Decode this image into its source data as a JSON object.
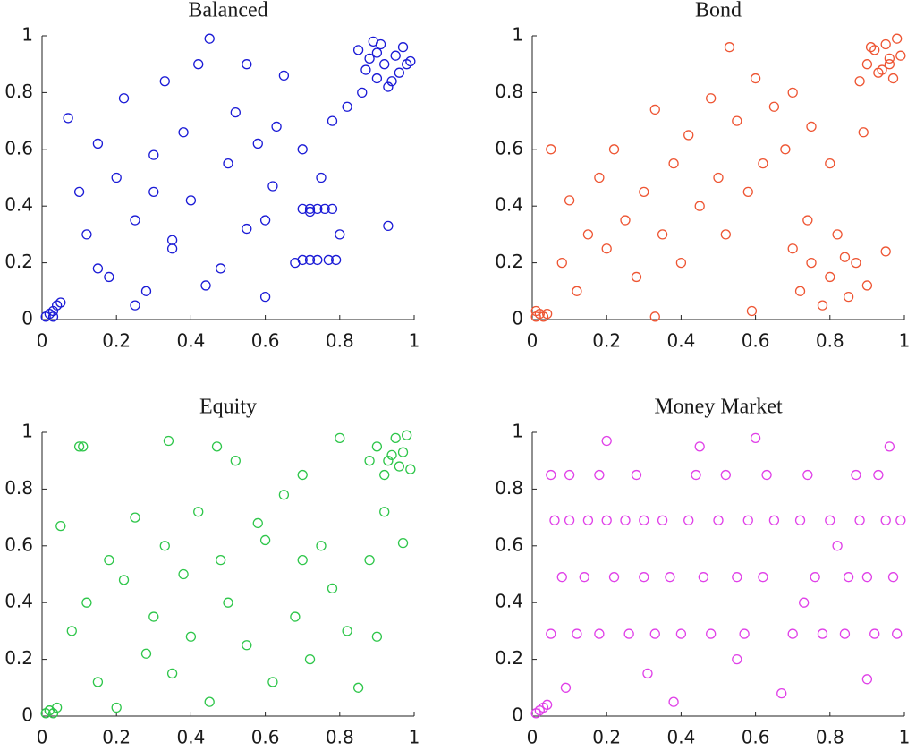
{
  "chart_data": [
    {
      "type": "scatter",
      "title": "Balanced",
      "color": "#1a1ad6",
      "xlim": [
        0,
        1
      ],
      "ylim": [
        0,
        1
      ],
      "xticks": [
        0,
        0.2,
        0.4,
        0.6,
        0.8,
        1
      ],
      "yticks": [
        0,
        0.2,
        0.4,
        0.6,
        0.8,
        1
      ],
      "x": [
        0.01,
        0.02,
        0.03,
        0.04,
        0.05,
        0.03,
        0.85,
        0.87,
        0.88,
        0.9,
        0.91,
        0.92,
        0.93,
        0.95,
        0.96,
        0.97,
        0.98,
        0.86,
        0.89,
        0.94,
        0.99,
        0.9,
        0.07,
        0.1,
        0.12,
        0.15,
        0.18,
        0.2,
        0.22,
        0.25,
        0.28,
        0.3,
        0.33,
        0.35,
        0.38,
        0.4,
        0.42,
        0.45,
        0.48,
        0.5,
        0.52,
        0.55,
        0.58,
        0.6,
        0.62,
        0.65,
        0.68,
        0.7,
        0.72,
        0.75,
        0.78,
        0.8,
        0.82,
        0.7,
        0.72,
        0.74,
        0.76,
        0.78,
        0.7,
        0.72,
        0.74,
        0.77,
        0.79,
        0.3,
        0.25,
        0.44,
        0.55,
        0.63,
        0.35,
        0.15,
        0.6,
        0.93
      ],
      "y": [
        0.01,
        0.02,
        0.03,
        0.05,
        0.06,
        0.01,
        0.95,
        0.88,
        0.92,
        0.85,
        0.97,
        0.9,
        0.82,
        0.93,
        0.87,
        0.96,
        0.9,
        0.8,
        0.98,
        0.84,
        0.91,
        0.94,
        0.71,
        0.45,
        0.3,
        0.62,
        0.15,
        0.5,
        0.78,
        0.35,
        0.1,
        0.58,
        0.84,
        0.25,
        0.66,
        0.42,
        0.9,
        0.99,
        0.18,
        0.55,
        0.73,
        0.32,
        0.62,
        0.08,
        0.47,
        0.86,
        0.2,
        0.6,
        0.38,
        0.5,
        0.7,
        0.3,
        0.75,
        0.39,
        0.39,
        0.39,
        0.39,
        0.39,
        0.21,
        0.21,
        0.21,
        0.21,
        0.21,
        0.45,
        0.05,
        0.12,
        0.9,
        0.68,
        0.28,
        0.18,
        0.35,
        0.33
      ]
    },
    {
      "type": "scatter",
      "title": "Bond",
      "color": "#ee5533",
      "xlim": [
        0,
        1
      ],
      "ylim": [
        0,
        1
      ],
      "xticks": [
        0,
        0.2,
        0.4,
        0.6,
        0.8,
        1
      ],
      "yticks": [
        0,
        0.2,
        0.4,
        0.6,
        0.8,
        1
      ],
      "x": [
        0.01,
        0.02,
        0.03,
        0.01,
        0.04,
        0.9,
        0.92,
        0.94,
        0.95,
        0.96,
        0.97,
        0.98,
        0.99,
        0.93,
        0.91,
        0.96,
        0.88,
        0.05,
        0.08,
        0.1,
        0.12,
        0.15,
        0.18,
        0.2,
        0.22,
        0.25,
        0.28,
        0.3,
        0.33,
        0.35,
        0.38,
        0.4,
        0.42,
        0.45,
        0.48,
        0.5,
        0.52,
        0.55,
        0.58,
        0.6,
        0.62,
        0.65,
        0.68,
        0.7,
        0.75,
        0.8,
        0.7,
        0.72,
        0.75,
        0.78,
        0.8,
        0.82,
        0.85,
        0.87,
        0.9,
        0.74,
        0.84,
        0.53,
        0.33,
        0.59,
        0.89,
        0.95
      ],
      "y": [
        0.01,
        0.02,
        0.01,
        0.03,
        0.02,
        0.9,
        0.95,
        0.88,
        0.97,
        0.92,
        0.85,
        0.99,
        0.93,
        0.87,
        0.96,
        0.9,
        0.84,
        0.6,
        0.2,
        0.42,
        0.1,
        0.3,
        0.5,
        0.25,
        0.6,
        0.35,
        0.15,
        0.45,
        0.74,
        0.3,
        0.55,
        0.2,
        0.65,
        0.4,
        0.78,
        0.5,
        0.3,
        0.7,
        0.45,
        0.85,
        0.55,
        0.75,
        0.6,
        0.8,
        0.68,
        0.55,
        0.25,
        0.1,
        0.2,
        0.05,
        0.15,
        0.3,
        0.08,
        0.2,
        0.12,
        0.35,
        0.22,
        0.96,
        0.01,
        0.03,
        0.66,
        0.24
      ]
    },
    {
      "type": "scatter",
      "title": "Equity",
      "color": "#2ec64a",
      "xlim": [
        0,
        1
      ],
      "ylim": [
        0,
        1
      ],
      "xticks": [
        0,
        0.2,
        0.4,
        0.6,
        0.8,
        1
      ],
      "yticks": [
        0,
        0.2,
        0.4,
        0.6,
        0.8,
        1
      ],
      "x": [
        0.01,
        0.02,
        0.03,
        0.04,
        0.02,
        0.88,
        0.9,
        0.92,
        0.94,
        0.95,
        0.96,
        0.97,
        0.98,
        0.99,
        0.93,
        0.05,
        0.08,
        0.1,
        0.12,
        0.15,
        0.18,
        0.2,
        0.22,
        0.25,
        0.28,
        0.3,
        0.33,
        0.35,
        0.38,
        0.4,
        0.42,
        0.45,
        0.48,
        0.5,
        0.52,
        0.55,
        0.58,
        0.6,
        0.62,
        0.65,
        0.68,
        0.7,
        0.72,
        0.75,
        0.78,
        0.8,
        0.82,
        0.85,
        0.88,
        0.9,
        0.11,
        0.34,
        0.47,
        0.7,
        0.92,
        0.97
      ],
      "y": [
        0.01,
        0.02,
        0.01,
        0.03,
        0.02,
        0.9,
        0.95,
        0.85,
        0.92,
        0.98,
        0.88,
        0.93,
        0.99,
        0.87,
        0.9,
        0.67,
        0.3,
        0.95,
        0.4,
        0.12,
        0.55,
        0.03,
        0.48,
        0.7,
        0.22,
        0.35,
        0.6,
        0.15,
        0.5,
        0.28,
        0.72,
        0.05,
        0.55,
        0.4,
        0.9,
        0.25,
        0.68,
        0.62,
        0.12,
        0.78,
        0.35,
        0.85,
        0.2,
        0.6,
        0.45,
        0.98,
        0.3,
        0.1,
        0.55,
        0.28,
        0.95,
        0.97,
        0.95,
        0.55,
        0.72,
        0.61
      ]
    },
    {
      "type": "scatter",
      "title": "Money Market",
      "color": "#e040e8",
      "xlim": [
        0,
        1
      ],
      "ylim": [
        0,
        1
      ],
      "xticks": [
        0,
        0.2,
        0.4,
        0.6,
        0.8,
        1
      ],
      "yticks": [
        0,
        0.2,
        0.4,
        0.6,
        0.8,
        1
      ],
      "x": [
        0.01,
        0.02,
        0.03,
        0.04,
        0.06,
        0.1,
        0.15,
        0.2,
        0.25,
        0.3,
        0.35,
        0.42,
        0.5,
        0.58,
        0.65,
        0.72,
        0.8,
        0.88,
        0.95,
        0.99,
        0.08,
        0.14,
        0.22,
        0.3,
        0.37,
        0.46,
        0.55,
        0.62,
        0.76,
        0.85,
        0.9,
        0.97,
        0.05,
        0.12,
        0.18,
        0.26,
        0.33,
        0.4,
        0.48,
        0.57,
        0.7,
        0.78,
        0.84,
        0.92,
        0.98,
        0.05,
        0.1,
        0.18,
        0.28,
        0.44,
        0.52,
        0.63,
        0.74,
        0.87,
        0.93,
        0.09,
        0.2,
        0.31,
        0.38,
        0.45,
        0.55,
        0.6,
        0.67,
        0.73,
        0.82,
        0.9,
        0.96
      ],
      "y": [
        0.01,
        0.02,
        0.03,
        0.04,
        0.69,
        0.69,
        0.69,
        0.69,
        0.69,
        0.69,
        0.69,
        0.69,
        0.69,
        0.69,
        0.69,
        0.69,
        0.69,
        0.69,
        0.69,
        0.69,
        0.49,
        0.49,
        0.49,
        0.49,
        0.49,
        0.49,
        0.49,
        0.49,
        0.49,
        0.49,
        0.49,
        0.49,
        0.29,
        0.29,
        0.29,
        0.29,
        0.29,
        0.29,
        0.29,
        0.29,
        0.29,
        0.29,
        0.29,
        0.29,
        0.29,
        0.85,
        0.85,
        0.85,
        0.85,
        0.85,
        0.85,
        0.85,
        0.85,
        0.85,
        0.85,
        0.1,
        0.97,
        0.15,
        0.05,
        0.95,
        0.2,
        0.98,
        0.08,
        0.4,
        0.6,
        0.13,
        0.95
      ]
    }
  ]
}
